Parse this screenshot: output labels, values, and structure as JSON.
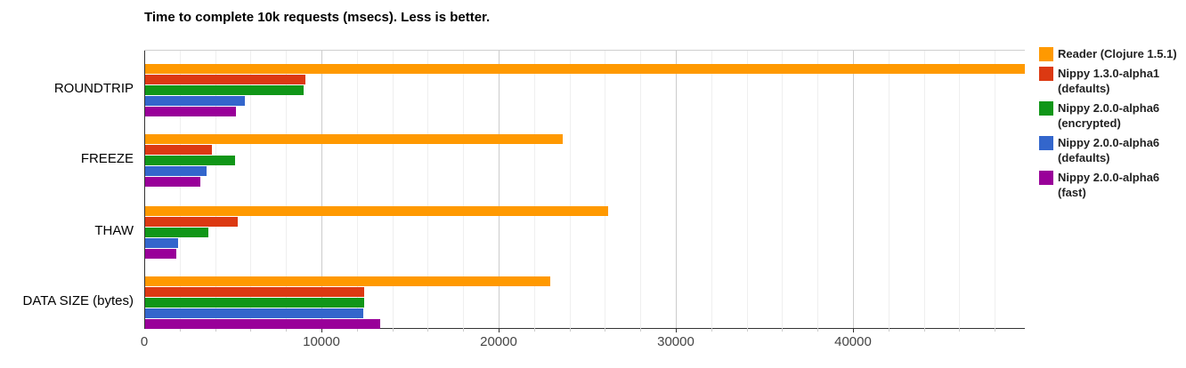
{
  "title": "Time to complete 10k requests (msecs). Less is better.",
  "chart_data": {
    "type": "bar",
    "orientation": "horizontal",
    "title": "Time to complete 10k requests (msecs). Less is better.",
    "categories": [
      "ROUNDTRIP",
      "FREEZE",
      "THAW",
      "DATA SIZE (bytes)"
    ],
    "series": [
      {
        "name": "Reader (Clojure 1.5.1)",
        "color": "#FF9900",
        "values": [
          49700,
          23600,
          26200,
          22900
        ]
      },
      {
        "name": "Nippy 1.3.0-alpha1 (defaults)",
        "color": "#DC3912",
        "values": [
          9100,
          3800,
          5300,
          12400
        ]
      },
      {
        "name": "Nippy 2.0.0-alpha6 (encrypted)",
        "color": "#109618",
        "values": [
          9000,
          5150,
          3600,
          12400
        ]
      },
      {
        "name": "Nippy 2.0.0-alpha6 (defaults)",
        "color": "#3366CC",
        "values": [
          5700,
          3500,
          1900,
          12350
        ]
      },
      {
        "name": "Nippy 2.0.0-alpha6 (fast)",
        "color": "#990099",
        "values": [
          5200,
          3150,
          1800,
          13330
        ]
      }
    ],
    "xlabel": "",
    "ylabel": "",
    "xlim": [
      0,
      49700
    ],
    "x_ticks": [
      0,
      10000,
      20000,
      30000,
      40000
    ],
    "x_tick_labels": [
      "0",
      "10000",
      "20000",
      "30000",
      "40000"
    ],
    "minor_grid_step": 2000,
    "grid": true,
    "legend_position": "right"
  },
  "legend": {
    "items": [
      {
        "label": "Reader (Clojure 1.5.1)",
        "color": "#FF9900"
      },
      {
        "label": "Nippy 1.3.0-alpha1\n(defaults)",
        "color": "#DC3912"
      },
      {
        "label": "Nippy 2.0.0-alpha6\n(encrypted)",
        "color": "#109618"
      },
      {
        "label": "Nippy 2.0.0-alpha6\n(defaults)",
        "color": "#3366CC"
      },
      {
        "label": "Nippy 2.0.0-alpha6 (fast)",
        "color": "#990099"
      }
    ]
  }
}
